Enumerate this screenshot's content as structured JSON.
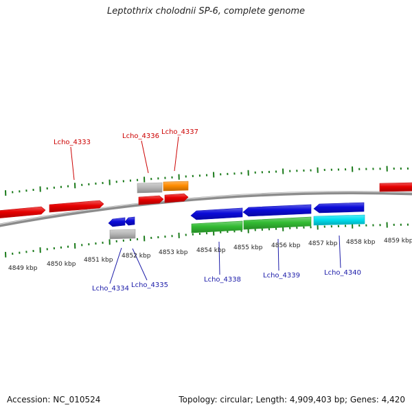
{
  "title": "Leptothrix cholodnii SP-6, complete genome",
  "footer": {
    "accession": "Accession: NC_010524",
    "summary": "Topology: circular; Length: 4,909,403 bp; Genes: 4,420"
  },
  "colors": {
    "background": "#ffffff",
    "backbone": "#8c8c8c",
    "tick": "#1a7a1a",
    "forward_label": "#cc0000",
    "reverse_label": "#1a1aa8",
    "red_feature": "#e60000",
    "blue_feature": "#0a0ad8",
    "green_feature": "#33bb33",
    "cyan_feature": "#00e0f0",
    "orange_feature": "#ff8c00",
    "gray_feature": "#b8b8b8"
  },
  "scale": {
    "unit": "kbp",
    "labels": [
      "4849 kbp",
      "4850 kbp",
      "4851 kbp",
      "4852 kbp",
      "4853 kbp",
      "4854 kbp",
      "4855 kbp",
      "4856 kbp",
      "4857 kbp",
      "4858 kbp",
      "4859 kbp"
    ]
  },
  "gene_labels": [
    {
      "id": "lcho-4333",
      "text": "Lcho_4333",
      "strand": "forward"
    },
    {
      "id": "lcho-4336",
      "text": "Lcho_4336",
      "strand": "forward"
    },
    {
      "id": "lcho-4337",
      "text": "Lcho_4337",
      "strand": "forward"
    },
    {
      "id": "lcho-4334",
      "text": "Lcho_4334",
      "strand": "reverse"
    },
    {
      "id": "lcho-4335",
      "text": "Lcho_4335",
      "strand": "reverse"
    },
    {
      "id": "lcho-4338",
      "text": "Lcho_4338",
      "strand": "reverse"
    },
    {
      "id": "lcho-4339",
      "text": "Lcho_4339",
      "strand": "reverse"
    },
    {
      "id": "lcho-4340",
      "text": "Lcho_4340",
      "strand": "reverse"
    }
  ]
}
